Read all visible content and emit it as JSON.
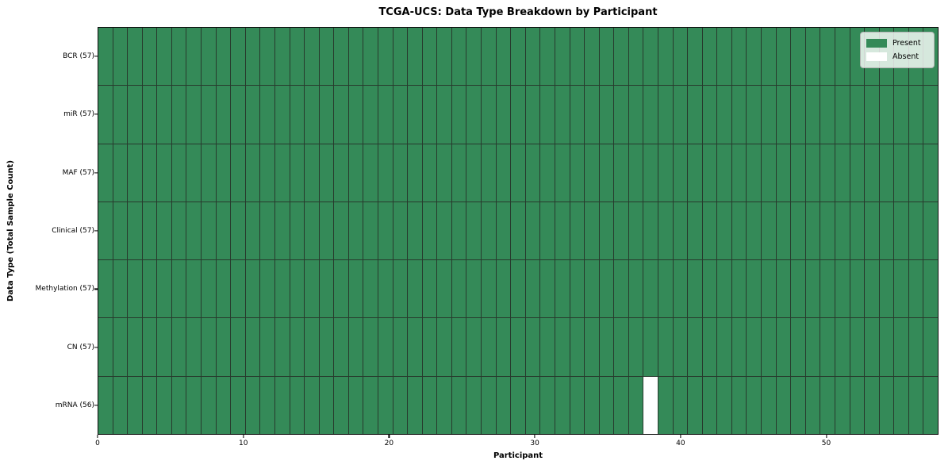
{
  "chart_data": {
    "type": "heatmap",
    "title": "TCGA-UCS: Data Type Breakdown by Participant",
    "xlabel": "Participant",
    "ylabel": "Data Type (Total Sample Count)",
    "x_ticks": [
      0,
      10,
      20,
      30,
      40,
      50
    ],
    "n_participants": 57,
    "x_range": [
      0,
      57.7
    ],
    "rows": [
      {
        "label": "BCR (57)",
        "data_type": "BCR",
        "present_count": 57,
        "absent_participants": []
      },
      {
        "label": "miR (57)",
        "data_type": "miR",
        "present_count": 57,
        "absent_participants": []
      },
      {
        "label": "MAF (57)",
        "data_type": "MAF",
        "present_count": 57,
        "absent_participants": []
      },
      {
        "label": "Clinical (57)",
        "data_type": "Clinical",
        "present_count": 57,
        "absent_participants": []
      },
      {
        "label": "Methylation (57)",
        "data_type": "Methylation",
        "present_count": 57,
        "absent_participants": []
      },
      {
        "label": "CN (57)",
        "data_type": "CN",
        "present_count": 57,
        "absent_participants": []
      },
      {
        "label": "mRNA (56)",
        "data_type": "mRNA",
        "present_count": 56,
        "absent_participants": [
          37
        ]
      }
    ],
    "legend": {
      "position": "upper-right",
      "entries": [
        {
          "label": "Present",
          "color": "#348a58"
        },
        {
          "label": "Absent",
          "color": "#ffffff"
        }
      ]
    },
    "colors": {
      "present": "#348a58",
      "absent": "#ffffff",
      "cell_edge": "#273a2d",
      "axis": "#000000"
    }
  }
}
